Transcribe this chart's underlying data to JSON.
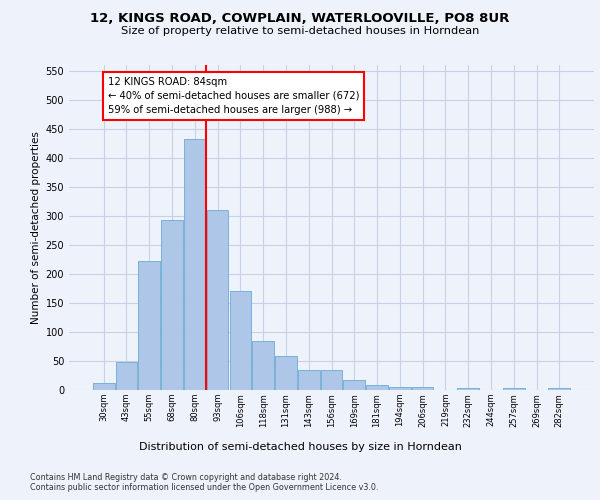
{
  "title1": "12, KINGS ROAD, COWPLAIN, WATERLOOVILLE, PO8 8UR",
  "title2": "Size of property relative to semi-detached houses in Horndean",
  "xlabel": "Distribution of semi-detached houses by size in Horndean",
  "ylabel": "Number of semi-detached properties",
  "categories": [
    "30sqm",
    "43sqm",
    "55sqm",
    "68sqm",
    "80sqm",
    "93sqm",
    "106sqm",
    "118sqm",
    "131sqm",
    "143sqm",
    "156sqm",
    "169sqm",
    "181sqm",
    "194sqm",
    "206sqm",
    "219sqm",
    "232sqm",
    "244sqm",
    "257sqm",
    "269sqm",
    "282sqm"
  ],
  "values": [
    12,
    48,
    222,
    293,
    432,
    311,
    170,
    85,
    58,
    35,
    35,
    17,
    8,
    5,
    5,
    0,
    3,
    0,
    3,
    0,
    3
  ],
  "bar_color": "#aec6e8",
  "bar_edge_color": "#6aaad4",
  "vline_color": "red",
  "vline_index": 4,
  "annotation_text": "12 KINGS ROAD: 84sqm\n← 40% of semi-detached houses are smaller (672)\n59% of semi-detached houses are larger (988) →",
  "annotation_box_color": "white",
  "annotation_box_edge_color": "red",
  "ylim": [
    0,
    560
  ],
  "yticks": [
    0,
    50,
    100,
    150,
    200,
    250,
    300,
    350,
    400,
    450,
    500,
    550
  ],
  "footer1": "Contains HM Land Registry data © Crown copyright and database right 2024.",
  "footer2": "Contains public sector information licensed under the Open Government Licence v3.0.",
  "bg_color": "#eef2fb",
  "plot_bg_color": "#eef2fb",
  "grid_color": "#c8d0e8"
}
